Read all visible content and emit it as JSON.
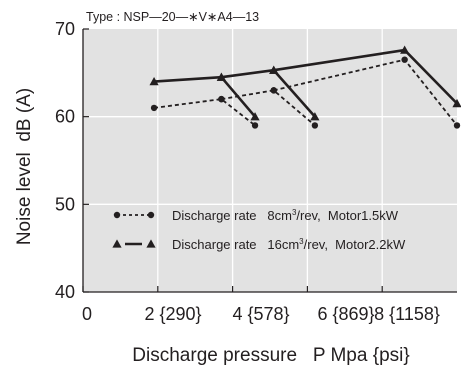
{
  "chart_data": {
    "type": "line",
    "title": "Type : NSP—20—∗V∗A4—13",
    "xlabel": "Discharge pressure   P Mpa {psi}",
    "ylabel": "Noise level  dB (A)",
    "xlim": [
      0,
      10
    ],
    "ylim": [
      40,
      70
    ],
    "grid": true,
    "plot_background": "#e2e2e2",
    "grid_color": "#ffffff",
    "x_ticks": [
      {
        "value": 0,
        "label": "0"
      },
      {
        "value": 2,
        "label": "2 {290}"
      },
      {
        "value": 4,
        "label": "4 {578}"
      },
      {
        "value": 6,
        "label": "6 {869}"
      },
      {
        "value": 8,
        "label": "8 {1158}"
      }
    ],
    "y_ticks": [
      {
        "value": 40,
        "label": "40"
      },
      {
        "value": 50,
        "label": "50"
      },
      {
        "value": 60,
        "label": "60"
      },
      {
        "value": 70,
        "label": "70"
      }
    ],
    "legend": {
      "placement": "bottom-inside",
      "entries": [
        {
          "series_index": 0,
          "text_before": "Discharge rate   8cm",
          "sup": "3",
          "text_after": "/rev,  Motor1.5kW"
        },
        {
          "series_index": 1,
          "text_before": "Discharge rate   16cm",
          "sup": "3",
          "text_after": "/rev,  Motor2.2kW"
        }
      ]
    },
    "series": [
      {
        "style": "dashed",
        "marker": "circle",
        "color": "#231f20",
        "x": [
          1.9,
          3.7,
          4.6,
          3.7,
          5.1,
          6.2,
          5.1,
          8.6,
          10.0
        ],
        "y": [
          61.0,
          62.0,
          59.0,
          62.0,
          63.0,
          59.0,
          63.0,
          66.5,
          59.0
        ],
        "segments": [
          [
            0,
            2
          ],
          [
            3,
            5
          ],
          [
            6,
            8
          ]
        ]
      },
      {
        "style": "solid",
        "marker": "triangle",
        "color": "#231f20",
        "x": [
          1.9,
          3.7,
          4.6,
          3.7,
          5.1,
          6.2,
          5.1,
          8.6,
          10.0
        ],
        "y": [
          64.0,
          64.5,
          60.0,
          64.5,
          65.3,
          60.0,
          65.3,
          67.6,
          61.5
        ],
        "segments": [
          [
            0,
            2
          ],
          [
            3,
            5
          ],
          [
            6,
            8
          ]
        ]
      }
    ]
  }
}
